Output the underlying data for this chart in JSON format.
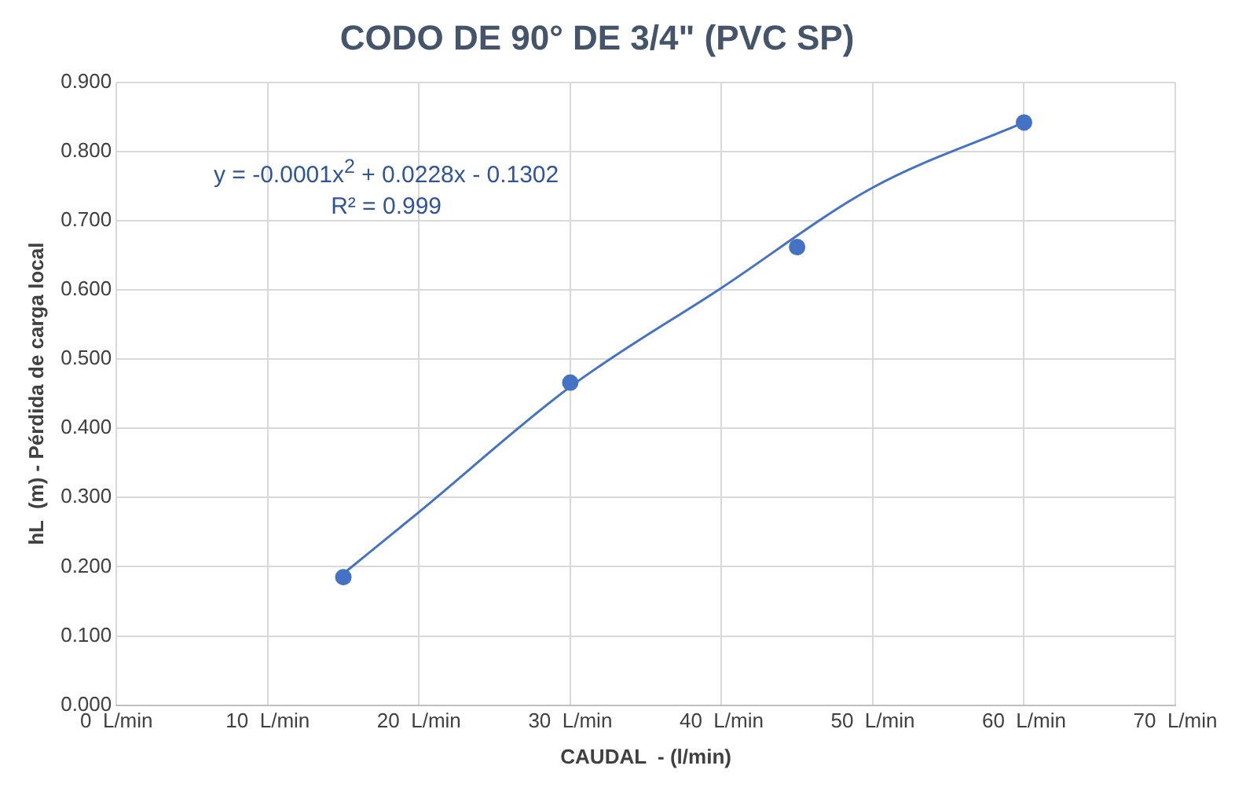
{
  "chart_data": {
    "type": "scatter",
    "title": "CODO DE 90° DE 3/4\" (PVC SP)",
    "xlabel": "CAUDAL  - (l/min)",
    "ylabel": "hL  (m) - Pérdida de carga local",
    "marker": "circle",
    "series": [
      {
        "color": "#4472c4",
        "x": [
          15,
          30,
          45,
          60
        ],
        "values": [
          0.185,
          0.466,
          0.662,
          0.842
        ]
      },
      {
        "type": "line",
        "color": "#4472c4",
        "x": [
          15,
          20,
          30,
          40,
          50,
          60
        ],
        "values": [
          0.19,
          0.279,
          0.46,
          0.603,
          0.748,
          0.842
        ],
        "marker": "none"
      }
    ],
    "xlim": [
      0,
      70
    ],
    "xticks": [
      {
        "value": 0,
        "label": "0  L/min"
      },
      {
        "value": 10,
        "label": "10  L/min"
      },
      {
        "value": 20,
        "label": "20  L/min"
      },
      {
        "value": 30,
        "label": "30  L/min"
      },
      {
        "value": 40,
        "label": "40  L/min"
      },
      {
        "value": 50,
        "label": "50  L/min"
      },
      {
        "value": 60,
        "label": "60  L/min"
      },
      {
        "value": 70,
        "label": "70  L/min"
      }
    ],
    "ylim": [
      0,
      0.9
    ],
    "yticks": [
      {
        "value": 0,
        "label": "0.000"
      },
      {
        "value": 0.1,
        "label": "0.100"
      },
      {
        "value": 0.2,
        "label": "0.200"
      },
      {
        "value": 0.3,
        "label": "0.300"
      },
      {
        "value": 0.4,
        "label": "0.400"
      },
      {
        "value": 0.5,
        "label": "0.500"
      },
      {
        "value": 0.6,
        "label": "0.600"
      },
      {
        "value": 0.7,
        "label": "0.700"
      },
      {
        "value": 0.8,
        "label": "0.800"
      },
      {
        "value": 0.9,
        "label": "0.900"
      }
    ],
    "annotations": [
      "y = -0.0001x$^{2}$  + 0.0228x  - 0.1302",
      "R² = 0.999"
    ],
    "grid": true,
    "legend": false
  }
}
